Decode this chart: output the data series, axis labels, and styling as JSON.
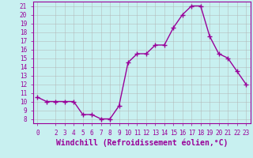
{
  "x": [
    0,
    1,
    2,
    3,
    4,
    5,
    6,
    7,
    8,
    9,
    10,
    11,
    12,
    13,
    14,
    15,
    16,
    17,
    18,
    19,
    20,
    21,
    22,
    23
  ],
  "y": [
    10.5,
    10,
    10,
    10,
    10,
    8.5,
    8.5,
    8,
    8,
    9.5,
    14.5,
    15.5,
    15.5,
    16.5,
    16.5,
    18.5,
    20,
    21,
    21,
    17.5,
    15.5,
    15,
    13.5,
    12
  ],
  "line_color": "#990099",
  "marker": "D",
  "marker_size": 2,
  "bg_color": "#c8f0f0",
  "grid_color": "#b0b0b0",
  "xlabel": "Windchill (Refroidissement éolien,°C)",
  "xlabel_color": "#990099",
  "xlim": [
    -0.5,
    23.5
  ],
  "ylim": [
    7.5,
    21.5
  ],
  "yticks": [
    8,
    9,
    10,
    11,
    12,
    13,
    14,
    15,
    16,
    17,
    18,
    19,
    20,
    21
  ],
  "xticks": [
    0,
    2,
    3,
    4,
    5,
    6,
    7,
    8,
    9,
    10,
    11,
    12,
    13,
    14,
    15,
    16,
    17,
    18,
    19,
    20,
    21,
    22,
    23
  ],
  "tick_color": "#990099",
  "tick_fontsize": 5.5,
  "xlabel_fontsize": 7,
  "linewidth": 1.0
}
